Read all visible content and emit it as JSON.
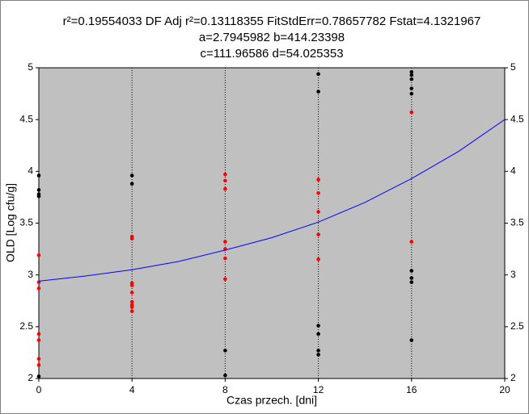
{
  "chart_data": {
    "type": "scatter",
    "title_lines": [
      "r²=0.19554033  DF Adj r²=0.13118355  FitStdErr=0.78657782  Fstat=4.1321967",
      "a=2.7945982 b=414.23398",
      "c=111.96586 d=54.025353"
    ],
    "x_label": "Czas przech. [dni]",
    "y_label": "OLD [Log cfu/g]",
    "xlim": [
      0,
      20
    ],
    "xticks": [
      0,
      4,
      8,
      12,
      16,
      20
    ],
    "ylim": [
      2,
      5
    ],
    "yticks": [
      2,
      2.5,
      3,
      3.5,
      4,
      4.5,
      5
    ],
    "grid": "x",
    "series": [
      {
        "color": "#000000",
        "x": [
          0,
          0,
          0,
          0,
          0,
          4,
          4,
          8,
          8,
          12,
          12,
          12,
          12,
          12,
          12,
          16,
          16,
          16,
          16,
          16,
          16,
          16,
          16,
          16
        ],
        "values": [
          3.96,
          3.82,
          3.78,
          3.76,
          2.02,
          3.96,
          3.88,
          2.27,
          2.03,
          4.94,
          4.77,
          2.51,
          2.43,
          2.27,
          2.23,
          4.96,
          4.93,
          4.89,
          4.8,
          4.75,
          3.04,
          2.97,
          2.93,
          2.37
        ]
      },
      {
        "color": "#ff0000",
        "x": [
          0,
          0,
          0,
          0,
          0,
          0,
          0,
          4,
          4,
          4,
          4,
          4,
          4,
          4,
          4,
          4,
          8,
          8,
          8,
          8,
          8,
          8,
          8,
          12,
          12,
          12,
          12,
          12,
          16,
          16
        ],
        "values": [
          3.19,
          2.93,
          2.87,
          2.43,
          2.37,
          2.19,
          2.13,
          3.37,
          3.35,
          2.92,
          2.9,
          2.83,
          2.74,
          2.71,
          2.69,
          2.65,
          3.97,
          3.91,
          3.83,
          3.32,
          3.25,
          3.16,
          2.96,
          3.92,
          3.79,
          3.61,
          3.39,
          3.15,
          4.57,
          3.32
        ]
      },
      {
        "type": "line",
        "color": "#0000ff",
        "x": [
          0,
          2,
          4,
          6,
          8,
          10,
          12,
          14,
          16,
          18,
          20
        ],
        "values": [
          2.94,
          2.99,
          3.05,
          3.13,
          3.24,
          3.36,
          3.51,
          3.7,
          3.93,
          4.19,
          4.5
        ]
      }
    ]
  }
}
